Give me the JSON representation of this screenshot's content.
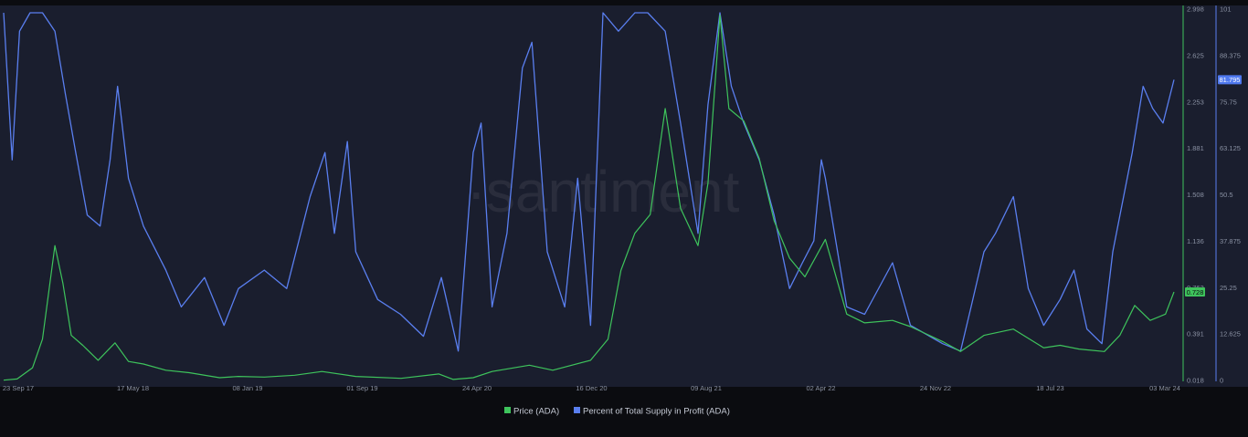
{
  "watermark": "·santiment",
  "colors": {
    "background": "#0b0c10",
    "plot_background": "#1a1e2e",
    "price": "#3ec45c",
    "supply": "#5a7ff0",
    "axis_text": "#8a91a3",
    "price_badge": "#3ec45c",
    "supply_badge": "#4f79ef"
  },
  "chart_data": {
    "type": "line",
    "x_ticks": [
      "23 Sep 17",
      "17 May 18",
      "08 Jan 19",
      "01 Sep 19",
      "24 Apr 20",
      "16 Dec 20",
      "09 Aug 21",
      "02 Apr 22",
      "24 Nov 22",
      "18 Jul 23",
      "03 Mar 24"
    ],
    "x_range": [
      "2017-09-23",
      "2024-03-03"
    ],
    "y_left": {
      "ticks": [
        "2.998",
        "2.625",
        "2.253",
        "1.881",
        "1.508",
        "1.136",
        "0.763",
        "0.391",
        "0.018"
      ],
      "range": [
        0.018,
        2.998
      ]
    },
    "y_right": {
      "ticks": [
        "101",
        "88.375",
        "75.75",
        "63.125",
        "50.5",
        "37.875",
        "25.25",
        "12.625",
        "0"
      ],
      "range": [
        0,
        101
      ]
    },
    "legend": [
      "Price (ADA)",
      "Percent of Total Supply in Profit (ADA)"
    ],
    "series": [
      {
        "name": "Price (ADA)",
        "axis": "left",
        "last_value_label": "0.728",
        "points": [
          [
            "2017-09-23",
            0.02
          ],
          [
            "2017-10-20",
            0.03
          ],
          [
            "2017-11-20",
            0.12
          ],
          [
            "2017-12-10",
            0.35
          ],
          [
            "2018-01-04",
            1.1
          ],
          [
            "2018-01-20",
            0.8
          ],
          [
            "2018-02-06",
            0.38
          ],
          [
            "2018-03-01",
            0.3
          ],
          [
            "2018-04-01",
            0.18
          ],
          [
            "2018-05-05",
            0.32
          ],
          [
            "2018-06-01",
            0.17
          ],
          [
            "2018-07-01",
            0.15
          ],
          [
            "2018-08-15",
            0.1
          ],
          [
            "2018-10-01",
            0.08
          ],
          [
            "2018-12-01",
            0.04
          ],
          [
            "2019-01-08",
            0.05
          ],
          [
            "2019-03-01",
            0.045
          ],
          [
            "2019-05-01",
            0.06
          ],
          [
            "2019-06-25",
            0.09
          ],
          [
            "2019-09-01",
            0.05
          ],
          [
            "2019-12-01",
            0.035
          ],
          [
            "2020-02-15",
            0.07
          ],
          [
            "2020-03-15",
            0.026
          ],
          [
            "2020-04-24",
            0.04
          ],
          [
            "2020-06-01",
            0.09
          ],
          [
            "2020-08-15",
            0.14
          ],
          [
            "2020-10-01",
            0.1
          ],
          [
            "2020-12-16",
            0.18
          ],
          [
            "2021-01-20",
            0.35
          ],
          [
            "2021-02-15",
            0.9
          ],
          [
            "2021-03-15",
            1.2
          ],
          [
            "2021-04-15",
            1.35
          ],
          [
            "2021-05-15",
            2.2
          ],
          [
            "2021-06-15",
            1.4
          ],
          [
            "2021-07-20",
            1.1
          ],
          [
            "2021-08-09",
            1.6
          ],
          [
            "2021-09-02",
            2.95
          ],
          [
            "2021-09-20",
            2.2
          ],
          [
            "2021-10-20",
            2.1
          ],
          [
            "2021-11-20",
            1.8
          ],
          [
            "2021-12-20",
            1.3
          ],
          [
            "2022-01-20",
            1.0
          ],
          [
            "2022-02-20",
            0.85
          ],
          [
            "2022-04-02",
            1.15
          ],
          [
            "2022-05-15",
            0.55
          ],
          [
            "2022-06-20",
            0.48
          ],
          [
            "2022-08-15",
            0.5
          ],
          [
            "2022-09-20",
            0.45
          ],
          [
            "2022-11-24",
            0.33
          ],
          [
            "2022-12-30",
            0.25
          ],
          [
            "2023-02-15",
            0.38
          ],
          [
            "2023-04-15",
            0.43
          ],
          [
            "2023-06-15",
            0.28
          ],
          [
            "2023-07-18",
            0.3
          ],
          [
            "2023-08-25",
            0.27
          ],
          [
            "2023-10-15",
            0.25
          ],
          [
            "2023-11-15",
            0.38
          ],
          [
            "2023-12-15",
            0.62
          ],
          [
            "2024-01-15",
            0.5
          ],
          [
            "2024-02-15",
            0.55
          ],
          [
            "2024-03-03",
            0.728
          ]
        ]
      },
      {
        "name": "Percent of Total Supply in Profit (ADA)",
        "axis": "right",
        "last_value_label": "81.795",
        "points": [
          [
            "2017-09-23",
            100
          ],
          [
            "2017-10-10",
            60
          ],
          [
            "2017-10-25",
            95
          ],
          [
            "2017-11-15",
            100
          ],
          [
            "2017-12-10",
            100
          ],
          [
            "2018-01-04",
            95
          ],
          [
            "2018-01-25",
            78
          ],
          [
            "2018-02-15",
            62
          ],
          [
            "2018-03-10",
            45
          ],
          [
            "2018-04-05",
            42
          ],
          [
            "2018-04-25",
            60
          ],
          [
            "2018-05-10",
            80
          ],
          [
            "2018-06-01",
            55
          ],
          [
            "2018-07-01",
            42
          ],
          [
            "2018-08-15",
            30
          ],
          [
            "2018-09-15",
            20
          ],
          [
            "2018-11-01",
            28
          ],
          [
            "2018-12-10",
            15
          ],
          [
            "2019-01-08",
            25
          ],
          [
            "2019-03-01",
            30
          ],
          [
            "2019-04-15",
            25
          ],
          [
            "2019-06-01",
            50
          ],
          [
            "2019-07-01",
            62
          ],
          [
            "2019-07-20",
            40
          ],
          [
            "2019-08-15",
            65
          ],
          [
            "2019-09-01",
            35
          ],
          [
            "2019-10-15",
            22
          ],
          [
            "2019-11-30",
            18
          ],
          [
            "2020-01-15",
            12
          ],
          [
            "2020-02-20",
            28
          ],
          [
            "2020-03-25",
            8
          ],
          [
            "2020-04-24",
            62
          ],
          [
            "2020-05-10",
            70
          ],
          [
            "2020-06-01",
            20
          ],
          [
            "2020-07-01",
            40
          ],
          [
            "2020-08-01",
            85
          ],
          [
            "2020-08-20",
            92
          ],
          [
            "2020-09-20",
            35
          ],
          [
            "2020-10-25",
            20
          ],
          [
            "2020-11-20",
            55
          ],
          [
            "2020-12-16",
            15
          ],
          [
            "2021-01-10",
            100
          ],
          [
            "2021-02-10",
            95
          ],
          [
            "2021-03-15",
            100
          ],
          [
            "2021-04-10",
            100
          ],
          [
            "2021-05-15",
            95
          ],
          [
            "2021-06-15",
            70
          ],
          [
            "2021-07-20",
            40
          ],
          [
            "2021-08-09",
            75
          ],
          [
            "2021-09-02",
            100
          ],
          [
            "2021-09-25",
            80
          ],
          [
            "2021-10-20",
            70
          ],
          [
            "2021-11-20",
            60
          ],
          [
            "2021-12-20",
            45
          ],
          [
            "2022-01-20",
            25
          ],
          [
            "2022-02-15",
            32
          ],
          [
            "2022-03-10",
            38
          ],
          [
            "2022-03-25",
            60
          ],
          [
            "2022-04-02",
            55
          ],
          [
            "2022-05-15",
            20
          ],
          [
            "2022-06-20",
            18
          ],
          [
            "2022-08-15",
            32
          ],
          [
            "2022-09-20",
            15
          ],
          [
            "2022-11-24",
            10
          ],
          [
            "2022-12-30",
            8
          ],
          [
            "2023-01-20",
            20
          ],
          [
            "2023-02-15",
            35
          ],
          [
            "2023-03-10",
            40
          ],
          [
            "2023-04-15",
            50
          ],
          [
            "2023-05-15",
            25
          ],
          [
            "2023-06-15",
            15
          ],
          [
            "2023-07-18",
            22
          ],
          [
            "2023-08-15",
            30
          ],
          [
            "2023-09-10",
            14
          ],
          [
            "2023-10-10",
            10
          ],
          [
            "2023-11-01",
            35
          ],
          [
            "2023-12-10",
            62
          ],
          [
            "2024-01-01",
            80
          ],
          [
            "2024-01-20",
            74
          ],
          [
            "2024-02-10",
            70
          ],
          [
            "2024-03-03",
            81.795
          ]
        ]
      }
    ]
  }
}
